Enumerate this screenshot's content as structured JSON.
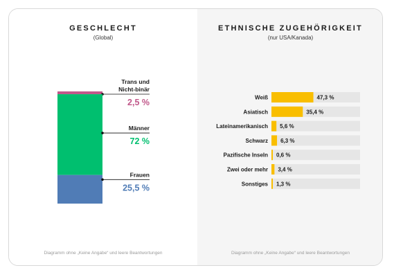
{
  "footnote": "Diagramm ohne „Keine Angabe“ und leere Beantwortungen",
  "chart_data": [
    {
      "type": "bar",
      "stacked": true,
      "title": "GESCHLECHT",
      "subtitle": "(Global)",
      "unit": "%",
      "segments": [
        {
          "name": "Trans und Nicht-binär",
          "value": 2.5,
          "value_label": "2,5 %",
          "color": "#c1588a"
        },
        {
          "name": "Männer",
          "value": 72,
          "value_label": "72 %",
          "color": "#00bf6f"
        },
        {
          "name": "Frauen",
          "value": 25.5,
          "value_label": "25,5 %",
          "color": "#507cb6"
        }
      ]
    },
    {
      "type": "bar",
      "orientation": "horizontal",
      "title": "ETHNISCHE ZUGEHÖRIGKEIT",
      "subtitle": "(nur USA/Kanada)",
      "unit": "%",
      "xlim": [
        0,
        100
      ],
      "bar_color": "#f9be00",
      "track_color": "#e6e6e6",
      "categories": [
        "Weiß",
        "Asiatisch",
        "Lateinamerikanisch",
        "Schwarz",
        "Pazifische Inseln",
        "Zwei oder mehr",
        "Sonstiges"
      ],
      "values": [
        47.3,
        35.4,
        5.6,
        6.3,
        0.6,
        3.4,
        1.3
      ],
      "value_labels": [
        "47,3 %",
        "35,4 %",
        "5,6 %",
        "6,3 %",
        "0,6 %",
        "3,4 %",
        "1,3 %"
      ]
    }
  ]
}
